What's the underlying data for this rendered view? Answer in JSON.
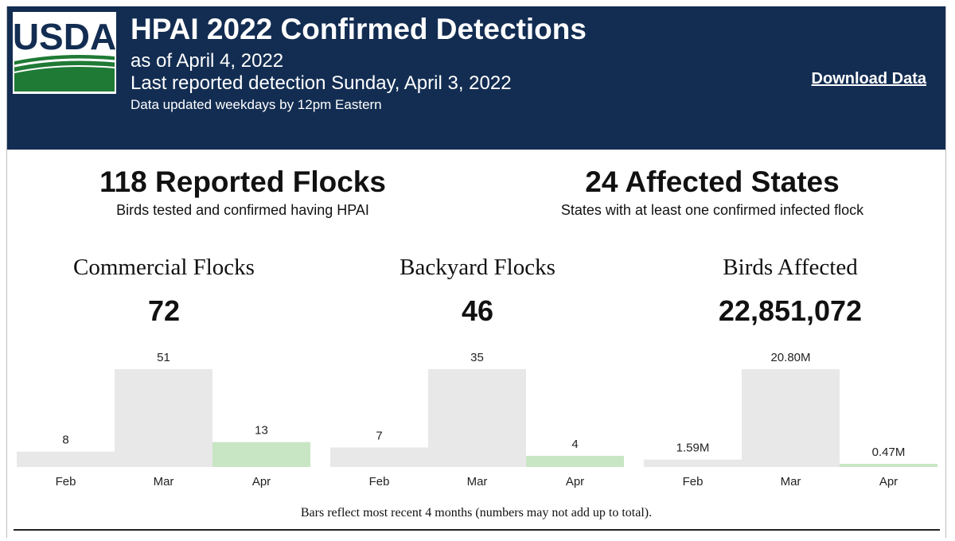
{
  "header": {
    "logo_text": "USDA",
    "title": "HPAI 2022 Confirmed Detections",
    "as_of": "as of April 4, 2022",
    "last_detection": "Last reported detection Sunday, April 3, 2022",
    "update_note": "Data updated weekdays by 12pm Eastern",
    "download_label": "Download Data"
  },
  "kpis": [
    {
      "value": "118 Reported Flocks",
      "sub": "Birds tested and confirmed having HPAI"
    },
    {
      "value": "24 Affected States",
      "sub": "States with at least one confirmed infected flock"
    }
  ],
  "panels": [
    {
      "title": "Commercial Flocks",
      "total": "72"
    },
    {
      "title": "Backyard Flocks",
      "total": "46"
    },
    {
      "title": "Birds Affected",
      "total": "22,851,072"
    }
  ],
  "footnote": "Bars reflect most recent 4 months (numbers may not add up to total).",
  "colors": {
    "header_bg": "#132d52",
    "bar_gray": "#e8e8e8",
    "bar_current": "#c8e6c3",
    "logo_green": "#1f7a35"
  },
  "chart_data": [
    {
      "type": "bar",
      "title": "Commercial Flocks",
      "categories": [
        "Feb",
        "Mar",
        "Apr"
      ],
      "values": [
        8,
        51,
        13
      ],
      "labels": [
        "8",
        "51",
        "13"
      ],
      "highlight_category": "Apr"
    },
    {
      "type": "bar",
      "title": "Backyard Flocks",
      "categories": [
        "Feb",
        "Mar",
        "Apr"
      ],
      "values": [
        7,
        35,
        4
      ],
      "labels": [
        "7",
        "35",
        "4"
      ],
      "highlight_category": "Apr"
    },
    {
      "type": "bar",
      "title": "Birds Affected",
      "categories": [
        "Feb",
        "Mar",
        "Apr"
      ],
      "values": [
        1.59,
        20.8,
        0.47
      ],
      "labels": [
        "1.59M",
        "20.80M",
        "0.47M"
      ],
      "unit": "M",
      "highlight_category": "Apr"
    }
  ]
}
